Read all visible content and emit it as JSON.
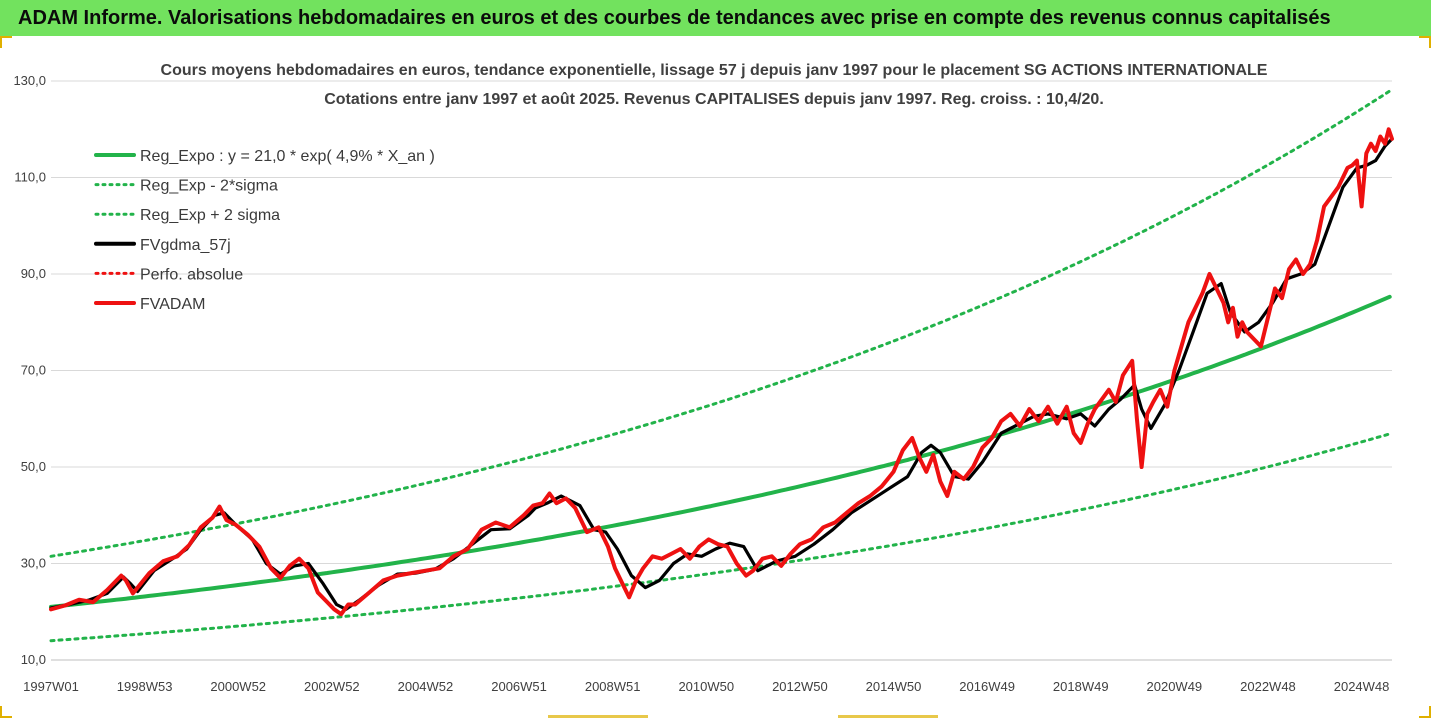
{
  "banner": {
    "title": "ADAM Informe. Valorisations hebdomadaires en euros et des courbes de tendances avec prise en compte des revenus connus capitalisés",
    "color": "#72e25e"
  },
  "chart_data": {
    "type": "line",
    "title": "Cours moyens hebdomadaires en euros, tendance exponentielle, lissage 57 j depuis janv 1997 pour le placement SG ACTIONS INTERNATIONALE",
    "subtitle": "Cotations entre janv 1997 et août 2025. Revenus CAPITALISES depuis janv 1997. Reg. croiss. : 10,4/20.",
    "xlabel": "",
    "ylabel": "",
    "x_range": [
      1997.0,
      2025.65
    ],
    "ylim": [
      10,
      130
    ],
    "y_ticks": [
      "10,0",
      "30,0",
      "50,0",
      "70,0",
      "90,0",
      "110,0",
      "130,0"
    ],
    "y_tick_values": [
      10,
      30,
      50,
      70,
      90,
      110,
      130
    ],
    "x_ticks": [
      "1997W01",
      "1998W53",
      "2000W52",
      "2002W52",
      "2004W52",
      "2006W51",
      "2008W51",
      "2010W50",
      "2012W50",
      "2014W50",
      "2016W49",
      "2018W49",
      "2020W49",
      "2022W48",
      "2024W48"
    ],
    "x_tick_values": [
      1997.0,
      1999.0,
      2001.0,
      2003.0,
      2005.0,
      2007.0,
      2009.0,
      2011.0,
      2013.0,
      2015.0,
      2017.0,
      2019.0,
      2021.0,
      2023.0,
      2025.0
    ],
    "grid": "horizontal",
    "legend": "top-left",
    "series": [
      {
        "name": "Reg_Expo : y = 21,0 * exp( 4,9% *  X_an )",
        "style": "solid",
        "color": "#22b34a",
        "formula": {
          "a": 21.0,
          "rate": 0.049,
          "x0": 1997.0
        }
      },
      {
        "name": "Reg_Exp - 2*sigma",
        "style": "dotted",
        "color": "#22b34a",
        "formula": {
          "a": 14.0,
          "rate": 0.049,
          "x0": 1997.0
        }
      },
      {
        "name": "Reg_Exp + 2 sigma",
        "style": "dotted",
        "color": "#22b34a",
        "formula": {
          "a": 31.5,
          "rate": 0.049,
          "x0": 1997.0
        }
      },
      {
        "name": "FVgdma_57j",
        "style": "solid",
        "color": "#000000",
        "x": [
          1997.0,
          1997.4,
          1997.8,
          1998.2,
          1998.55,
          1998.7,
          1998.85,
          1999.2,
          1999.6,
          1999.9,
          2000.2,
          2000.5,
          2000.7,
          2000.95,
          2001.3,
          2001.6,
          2001.9,
          2002.2,
          2002.5,
          2002.8,
          2003.1,
          2003.3,
          2003.6,
          2004.0,
          2004.4,
          2004.8,
          2005.2,
          2005.6,
          2006.0,
          2006.4,
          2006.8,
          2007.2,
          2007.35,
          2007.6,
          2007.9,
          2008.3,
          2008.6,
          2008.85,
          2009.1,
          2009.4,
          2009.7,
          2010.0,
          2010.3,
          2010.6,
          2010.9,
          2011.2,
          2011.5,
          2011.8,
          2012.1,
          2012.5,
          2012.9,
          2013.3,
          2013.7,
          2014.1,
          2014.5,
          2014.9,
          2015.3,
          2015.6,
          2015.8,
          2016.0,
          2016.3,
          2016.6,
          2016.9,
          2017.3,
          2017.7,
          2018.0,
          2018.3,
          2018.7,
          2019.0,
          2019.3,
          2019.6,
          2019.85,
          2020.15,
          2020.3,
          2020.5,
          2020.8,
          2021.1,
          2021.4,
          2021.7,
          2022.0,
          2022.2,
          2022.5,
          2022.8,
          2023.1,
          2023.4,
          2023.7,
          2024.0,
          2024.3,
          2024.6,
          2024.9,
          2025.1,
          2025.3,
          2025.5,
          2025.65
        ],
        "y": [
          20.8,
          21.5,
          22.4,
          23.8,
          27.2,
          25.8,
          24.2,
          28.5,
          31.0,
          33.0,
          37.0,
          40.0,
          40.5,
          38.0,
          35.0,
          30.0,
          27.8,
          29.5,
          30.0,
          26.0,
          21.5,
          20.5,
          22.5,
          25.5,
          27.8,
          28.0,
          28.8,
          31.0,
          34.0,
          37.0,
          37.2,
          40.0,
          41.5,
          42.5,
          44.0,
          42.0,
          37.0,
          36.5,
          33.0,
          27.5,
          25.0,
          26.5,
          30.0,
          32.0,
          31.5,
          33.0,
          34.2,
          33.5,
          28.5,
          30.5,
          31.5,
          34.0,
          37.0,
          40.5,
          43.0,
          45.5,
          48.0,
          53.0,
          54.5,
          53.0,
          48.0,
          47.5,
          51.0,
          57.0,
          59.0,
          60.5,
          61.0,
          60.0,
          61.0,
          58.5,
          62.0,
          64.0,
          67.0,
          62.0,
          58.0,
          63.0,
          70.0,
          78.0,
          86.0,
          88.0,
          82.0,
          78.0,
          80.0,
          84.0,
          89.0,
          90.0,
          92.0,
          100.0,
          108.0,
          112.0,
          112.5,
          113.5,
          116.5,
          118.0
        ]
      },
      {
        "name": "Perfo. absolue",
        "style": "dotted",
        "color": "#ee1111"
      },
      {
        "name": "FVADAM",
        "style": "solid",
        "color": "#ee1111",
        "x": [
          1997.0,
          1997.3,
          1997.6,
          1997.9,
          1998.2,
          1998.5,
          1998.6,
          1998.75,
          1998.85,
          1999.1,
          1999.4,
          1999.7,
          1999.95,
          2000.2,
          2000.45,
          2000.6,
          2000.75,
          2000.95,
          2001.2,
          2001.45,
          2001.7,
          2001.9,
          2002.1,
          2002.3,
          2002.5,
          2002.7,
          2002.9,
          2003.05,
          2003.2,
          2003.35,
          2003.5,
          2003.8,
          2004.1,
          2004.4,
          2004.7,
          2005.0,
          2005.3,
          2005.6,
          2005.9,
          2006.2,
          2006.5,
          2006.8,
          2007.1,
          2007.3,
          2007.5,
          2007.65,
          2007.8,
          2008.0,
          2008.2,
          2008.45,
          2008.7,
          2008.9,
          2009.05,
          2009.2,
          2009.35,
          2009.5,
          2009.65,
          2009.85,
          2010.05,
          2010.25,
          2010.45,
          2010.65,
          2010.85,
          2011.05,
          2011.25,
          2011.45,
          2011.65,
          2011.85,
          2012.0,
          2012.2,
          2012.4,
          2012.6,
          2012.8,
          2013.0,
          2013.25,
          2013.5,
          2013.75,
          2014.0,
          2014.25,
          2014.5,
          2014.75,
          2015.0,
          2015.2,
          2015.4,
          2015.55,
          2015.7,
          2015.85,
          2016.0,
          2016.15,
          2016.3,
          2016.5,
          2016.7,
          2016.9,
          2017.1,
          2017.3,
          2017.5,
          2017.7,
          2017.9,
          2018.1,
          2018.3,
          2018.5,
          2018.7,
          2018.85,
          2019.0,
          2019.15,
          2019.3,
          2019.45,
          2019.6,
          2019.75,
          2019.9,
          2020.1,
          2020.2,
          2020.3,
          2020.42,
          2020.55,
          2020.7,
          2020.85,
          2021.0,
          2021.15,
          2021.3,
          2021.45,
          2021.6,
          2021.75,
          2021.9,
          2022.05,
          2022.15,
          2022.25,
          2022.35,
          2022.45,
          2022.55,
          2022.7,
          2022.85,
          2023.0,
          2023.15,
          2023.3,
          2023.45,
          2023.6,
          2023.75,
          2023.9,
          2024.05,
          2024.2,
          2024.35,
          2024.5,
          2024.6,
          2024.7,
          2024.8,
          2024.9,
          2025.0,
          2025.1,
          2025.2,
          2025.3,
          2025.4,
          2025.5,
          2025.58,
          2025.65
        ],
        "y": [
          20.5,
          21.3,
          22.5,
          22.0,
          24.5,
          27.5,
          26.5,
          23.8,
          25.0,
          28.0,
          30.5,
          31.5,
          33.8,
          37.5,
          39.5,
          41.8,
          39.0,
          38.0,
          36.0,
          33.5,
          29.0,
          27.0,
          29.5,
          31.0,
          29.0,
          24.0,
          22.0,
          20.5,
          19.5,
          21.5,
          21.5,
          24.0,
          26.5,
          27.5,
          28.0,
          28.5,
          29.0,
          31.5,
          33.0,
          37.0,
          38.5,
          37.5,
          40.0,
          42.0,
          42.5,
          44.5,
          42.5,
          43.5,
          41.5,
          36.5,
          37.5,
          33.5,
          29.0,
          26.0,
          23.0,
          26.5,
          29.0,
          31.5,
          31.0,
          32.0,
          33.0,
          31.0,
          33.5,
          35.0,
          34.0,
          33.5,
          30.0,
          27.5,
          28.5,
          31.0,
          31.5,
          29.5,
          32.0,
          34.0,
          35.0,
          37.5,
          38.5,
          40.5,
          42.5,
          44.0,
          46.0,
          49.0,
          53.5,
          56.0,
          52.0,
          49.0,
          52.5,
          47.0,
          44.0,
          49.0,
          47.5,
          50.0,
          54.0,
          56.0,
          59.5,
          61.0,
          58.5,
          62.0,
          59.5,
          62.5,
          59.0,
          62.5,
          57.0,
          55.0,
          59.0,
          62.0,
          64.0,
          66.0,
          63.5,
          69.0,
          72.0,
          60.0,
          50.0,
          61.0,
          63.5,
          66.0,
          62.5,
          70.0,
          75.0,
          80.0,
          83.0,
          86.0,
          90.0,
          87.0,
          84.0,
          80.0,
          83.0,
          77.0,
          80.0,
          78.0,
          76.5,
          75.0,
          81.0,
          87.0,
          85.0,
          91.0,
          93.0,
          90.0,
          92.0,
          97.0,
          104.0,
          106.0,
          108.0,
          110.0,
          112.0,
          112.5,
          113.5,
          104.0,
          115.0,
          117.0,
          115.5,
          118.5,
          117.0,
          120.0,
          118.0
        ]
      }
    ]
  }
}
